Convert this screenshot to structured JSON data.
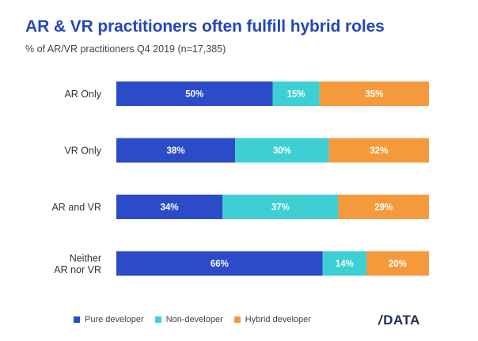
{
  "title": "AR & VR practitioners often fulfill hybrid roles",
  "subtitle": "% of AR/VR practitioners Q4 2019 (n=17,385)",
  "logo": {
    "slash": "/",
    "text": "DATA"
  },
  "chart_data": {
    "type": "bar",
    "orientation": "horizontal",
    "stacked": true,
    "categories": [
      "AR Only",
      "VR Only",
      "AR and VR",
      "Neither AR nor VR"
    ],
    "category_lines": [
      [
        "AR Only"
      ],
      [
        "VR Only"
      ],
      [
        "AR and VR"
      ],
      [
        "Neither",
        "AR nor VR"
      ]
    ],
    "series": [
      {
        "name": "Pure developer",
        "color": "#2b4bc8",
        "values": [
          50,
          38,
          34,
          66
        ]
      },
      {
        "name": "Non-developer",
        "color": "#3ecfd4",
        "values": [
          15,
          30,
          37,
          14
        ]
      },
      {
        "name": "Hybrid developer",
        "color": "#f59a3c",
        "values": [
          35,
          32,
          29,
          20
        ]
      }
    ],
    "value_suffix": "%",
    "xlim": [
      0,
      100
    ],
    "legend_position": "bottom",
    "grid": false
  }
}
